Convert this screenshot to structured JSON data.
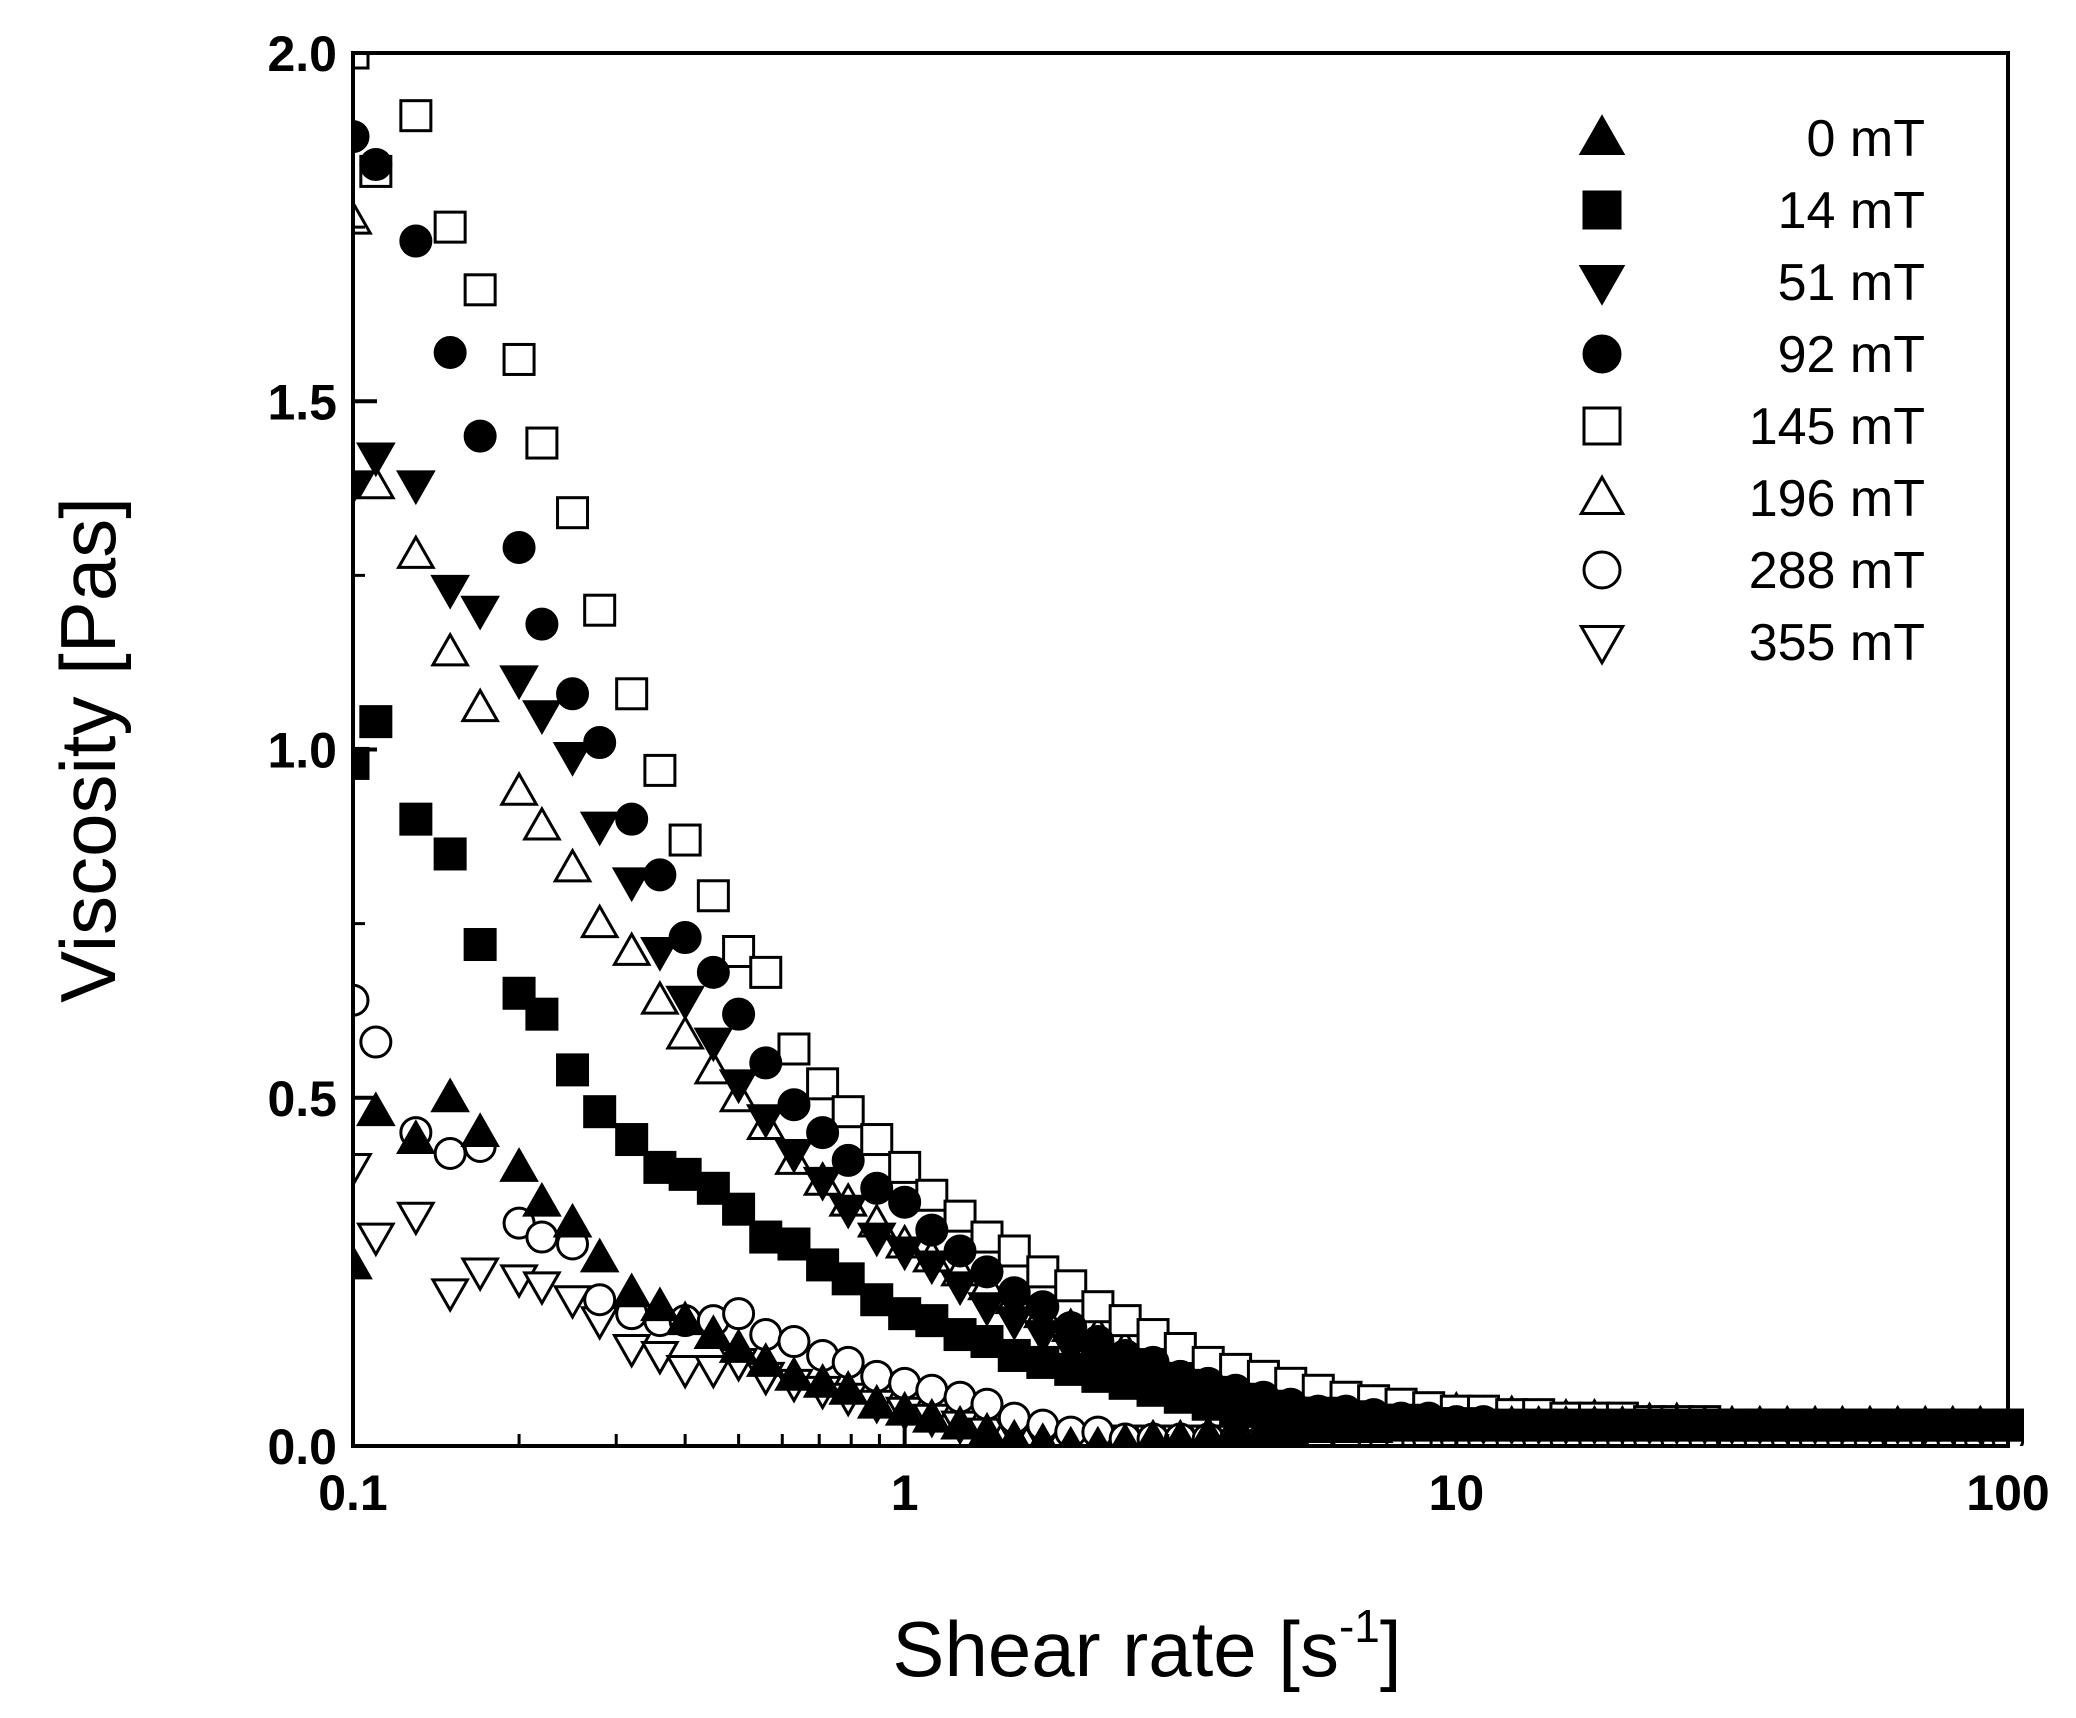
{
  "chart_data": {
    "type": "scatter",
    "title": "",
    "xlabel": "Shear rate [s",
    "xlabel_sup": "-1",
    "xlabel_close": "]",
    "ylabel": "Viscosity [Pas]",
    "xscale": "log",
    "xlim": [
      0.1,
      100
    ],
    "ylim": [
      0,
      2.0
    ],
    "xticks": [
      "0.1",
      "1",
      "10",
      "100"
    ],
    "yticks": [
      "0.0",
      "0.5",
      "1.0",
      "1.5",
      "2.0"
    ],
    "grid": false,
    "legend_position": "top-right",
    "x": [
      0.1,
      0.11,
      0.13,
      0.15,
      0.17,
      0.2,
      0.22,
      0.25,
      0.28,
      0.32,
      0.36,
      0.4,
      0.45,
      0.5,
      0.56,
      0.63,
      0.71,
      0.79,
      0.89,
      1.0,
      1.12,
      1.26,
      1.41,
      1.58,
      1.78,
      2.0,
      2.24,
      2.51,
      2.82,
      3.16,
      3.55,
      3.98,
      4.47,
      5.01,
      5.62,
      6.31,
      7.08,
      7.94,
      8.91,
      10.0,
      11.2,
      12.6,
      14.1,
      15.8,
      17.8,
      20.0,
      22.4,
      25.1,
      28.2,
      31.6,
      35.5,
      39.8,
      44.7,
      50.1,
      56.2,
      63.1,
      70.8,
      79.4,
      89.1,
      100.0
    ],
    "series": [
      {
        "name": "0 mT",
        "marker": "triangle-up",
        "filled": true,
        "values": [
          0.26,
          0.48,
          0.44,
          0.5,
          0.45,
          0.4,
          0.35,
          0.32,
          0.27,
          0.22,
          0.2,
          0.18,
          0.16,
          0.14,
          0.12,
          0.1,
          0.09,
          0.08,
          0.06,
          0.05,
          0.04,
          0.03,
          0.02,
          0.01,
          0.005,
          0.0,
          0.0,
          0.005,
          0.01,
          0.01,
          0.015,
          0.02,
          0.02,
          0.02,
          0.025,
          0.025,
          0.025,
          0.03,
          0.03,
          0.03,
          0.03,
          0.03,
          0.03,
          0.03,
          0.03,
          0.03,
          0.03,
          0.03,
          0.03,
          0.03,
          0.03,
          0.03,
          0.03,
          0.03,
          0.03,
          0.03,
          0.03,
          0.03,
          0.03,
          0.03
        ]
      },
      {
        "name": "14 mT",
        "marker": "square",
        "filled": true,
        "values": [
          0.98,
          1.04,
          0.9,
          0.85,
          0.72,
          0.65,
          0.62,
          0.54,
          0.48,
          0.44,
          0.4,
          0.39,
          0.37,
          0.34,
          0.3,
          0.29,
          0.26,
          0.24,
          0.21,
          0.19,
          0.18,
          0.16,
          0.15,
          0.13,
          0.12,
          0.11,
          0.1,
          0.09,
          0.08,
          0.07,
          0.06,
          0.05,
          0.05,
          0.04,
          0.04,
          0.035,
          0.03,
          0.03,
          0.03,
          0.03,
          0.03,
          0.03,
          0.03,
          0.03,
          0.03,
          0.03,
          0.03,
          0.03,
          0.03,
          0.03,
          0.03,
          0.03,
          0.03,
          0.03,
          0.03,
          0.03,
          0.03,
          0.03,
          0.03,
          0.03
        ]
      },
      {
        "name": "51 mT",
        "marker": "triangle-down",
        "filled": true,
        "values": [
          1.38,
          1.42,
          1.38,
          1.23,
          1.2,
          1.1,
          1.05,
          0.99,
          0.89,
          0.81,
          0.71,
          0.64,
          0.58,
          0.52,
          0.47,
          0.42,
          0.38,
          0.34,
          0.3,
          0.28,
          0.26,
          0.23,
          0.2,
          0.18,
          0.16,
          0.14,
          0.12,
          0.11,
          0.1,
          0.09,
          0.08,
          0.07,
          0.06,
          0.05,
          0.05,
          0.045,
          0.04,
          0.04,
          0.035,
          0.035,
          0.03,
          0.03,
          0.03,
          0.03,
          0.03,
          0.03,
          0.03,
          0.03,
          0.03,
          0.03,
          0.03,
          0.03,
          0.03,
          0.03,
          0.03,
          0.03,
          0.03,
          0.03,
          0.03,
          0.03
        ]
      },
      {
        "name": "92 mT",
        "marker": "circle",
        "filled": true,
        "values": [
          1.88,
          1.84,
          1.73,
          1.57,
          1.45,
          1.29,
          1.18,
          1.08,
          1.01,
          0.9,
          0.82,
          0.73,
          0.68,
          0.62,
          0.55,
          0.49,
          0.45,
          0.41,
          0.37,
          0.35,
          0.31,
          0.28,
          0.25,
          0.22,
          0.2,
          0.17,
          0.15,
          0.13,
          0.12,
          0.1,
          0.09,
          0.08,
          0.07,
          0.06,
          0.05,
          0.05,
          0.045,
          0.04,
          0.04,
          0.035,
          0.035,
          0.03,
          0.03,
          0.03,
          0.03,
          0.03,
          0.03,
          0.03,
          0.03,
          0.03,
          0.03,
          0.03,
          0.03,
          0.03,
          0.03,
          0.03,
          0.03,
          0.03,
          0.03,
          0.03
        ]
      },
      {
        "name": "145 mT",
        "marker": "square",
        "filled": false,
        "values": [
          2.0,
          1.83,
          1.91,
          1.75,
          1.66,
          1.56,
          1.44,
          1.34,
          1.2,
          1.08,
          0.97,
          0.87,
          0.79,
          0.71,
          0.68,
          0.57,
          0.52,
          0.48,
          0.44,
          0.4,
          0.36,
          0.33,
          0.3,
          0.28,
          0.25,
          0.23,
          0.2,
          0.18,
          0.16,
          0.14,
          0.12,
          0.11,
          0.1,
          0.09,
          0.08,
          0.07,
          0.065,
          0.06,
          0.055,
          0.05,
          0.05,
          0.045,
          0.045,
          0.04,
          0.04,
          0.04,
          0.035,
          0.035,
          0.035,
          0.03,
          0.03,
          0.03,
          0.03,
          0.03,
          0.03,
          0.03,
          0.03,
          0.03,
          0.03,
          0.03
        ]
      },
      {
        "name": "196 mT",
        "marker": "triangle-up",
        "filled": false,
        "values": [
          1.76,
          1.38,
          1.28,
          1.14,
          1.06,
          0.94,
          0.89,
          0.83,
          0.75,
          0.71,
          0.64,
          0.59,
          0.54,
          0.5,
          0.46,
          0.41,
          0.38,
          0.35,
          0.32,
          0.29,
          0.27,
          0.25,
          0.23,
          0.21,
          0.19,
          0.17,
          0.16,
          0.14,
          0.13,
          0.12,
          0.11,
          0.1,
          0.09,
          0.08,
          0.07,
          0.065,
          0.06,
          0.055,
          0.05,
          0.05,
          0.045,
          0.045,
          0.04,
          0.04,
          0.04,
          0.035,
          0.035,
          0.035,
          0.03,
          0.03,
          0.03,
          0.03,
          0.03,
          0.03,
          0.03,
          0.03,
          0.03,
          0.03,
          0.03,
          0.03
        ]
      },
      {
        "name": "288 mT",
        "marker": "circle",
        "filled": false,
        "values": [
          0.64,
          0.58,
          0.45,
          0.42,
          0.43,
          0.32,
          0.3,
          0.29,
          0.21,
          0.19,
          0.18,
          0.18,
          0.18,
          0.19,
          0.16,
          0.15,
          0.13,
          0.12,
          0.1,
          0.09,
          0.08,
          0.07,
          0.06,
          0.04,
          0.03,
          0.02,
          0.02,
          0.01,
          0.01,
          0.01,
          0.01,
          0.01,
          0.01,
          0.01,
          0.01,
          0.01,
          0.01,
          0.01,
          0.01,
          0.01,
          0.01,
          0.01,
          0.01,
          0.01,
          0.01,
          0.01,
          0.01,
          0.01,
          0.01,
          0.01,
          0.01,
          0.01,
          0.01,
          0.01,
          0.01,
          0.01,
          0.01,
          0.01,
          0.01,
          0.01
        ]
      },
      {
        "name": "355 mT",
        "marker": "triangle-down",
        "filled": false,
        "values": [
          0.4,
          0.3,
          0.33,
          0.22,
          0.25,
          0.24,
          0.23,
          0.21,
          0.18,
          0.14,
          0.13,
          0.11,
          0.11,
          0.12,
          0.1,
          0.09,
          0.08,
          0.07,
          0.06,
          0.05,
          0.04,
          0.03,
          0.02,
          0.02,
          0.01,
          0.01,
          0.01,
          0.01,
          0.01,
          0.01,
          0.01,
          0.01,
          0.01,
          0.01,
          0.01,
          0.01,
          0.01,
          0.01,
          0.01,
          0.01,
          0.01,
          0.01,
          0.01,
          0.01,
          0.01,
          0.01,
          0.01,
          0.01,
          0.01,
          0.01,
          0.01,
          0.01,
          0.01,
          0.01,
          0.01,
          0.01,
          0.01,
          0.01,
          0.01,
          0.01
        ]
      }
    ]
  }
}
